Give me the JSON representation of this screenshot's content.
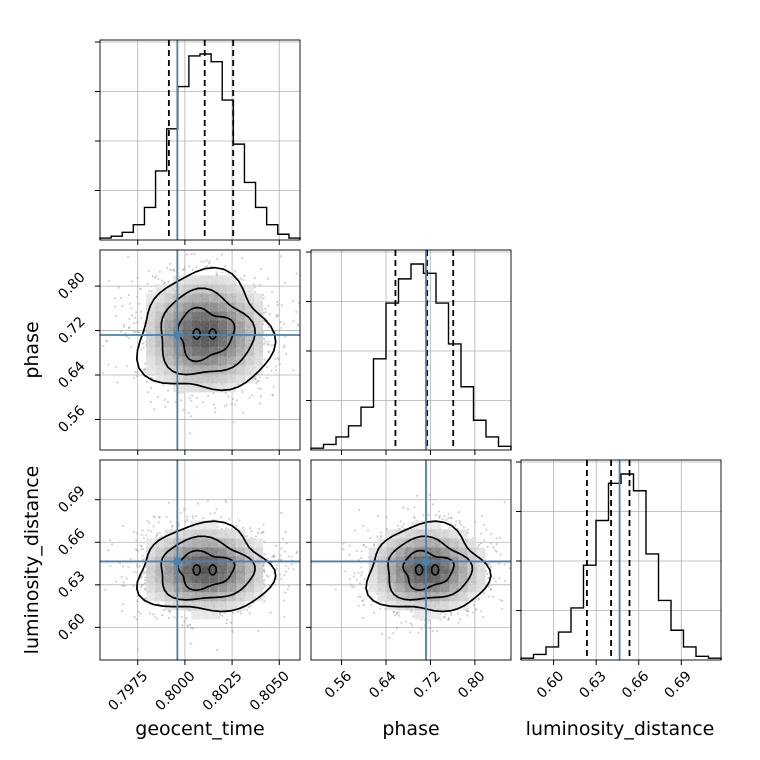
{
  "chart_data": {
    "type": "corner",
    "parameters": [
      "geocent_time",
      "phase",
      "luminosity_distance"
    ],
    "labels": {
      "geocent_time": "geocent_time",
      "phase": "phase",
      "luminosity_distance": "luminosity_distance"
    },
    "ticks": {
      "geocent_time": [
        "0.7975",
        "0.8000",
        "0.8025",
        "0.8050"
      ],
      "phase": [
        "0.56",
        "0.64",
        "0.72",
        "0.80"
      ],
      "luminosity_distance": [
        "0.60",
        "0.63",
        "0.66",
        "0.69"
      ]
    },
    "axis_ranges": {
      "geocent_time": [
        0.7955,
        0.8061
      ],
      "phase": [
        0.505,
        0.865
      ],
      "luminosity_distance": [
        0.577,
        0.718
      ]
    },
    "truths": {
      "geocent_time": 0.7996,
      "phase": 0.712,
      "luminosity_distance": 0.6465
    },
    "quantiles": {
      "geocent_time": [
        0.79915,
        0.80105,
        0.80256
      ],
      "phase": [
        0.657,
        0.714,
        0.761
      ],
      "luminosity_distance": [
        0.6235,
        0.6405,
        0.6535
      ]
    },
    "histograms": {
      "geocent_time": [
        1,
        2,
        4,
        8,
        17,
        36,
        58,
        80,
        96,
        97,
        93,
        73,
        50,
        30,
        17,
        8,
        3,
        1
      ],
      "phase": [
        1,
        3,
        7,
        13,
        23,
        49,
        79,
        92,
        100,
        95,
        79,
        57,
        34,
        16,
        7,
        2
      ],
      "luminosity_distance": [
        1,
        3,
        7,
        15,
        28,
        51,
        75,
        95,
        100,
        91,
        57,
        32,
        16,
        7,
        2,
        1
      ]
    },
    "grid": true,
    "colors": {
      "truth": "#4682b4",
      "hist": "#000000",
      "grid": "#b0b0b0",
      "points": "#9a9a9a"
    }
  }
}
